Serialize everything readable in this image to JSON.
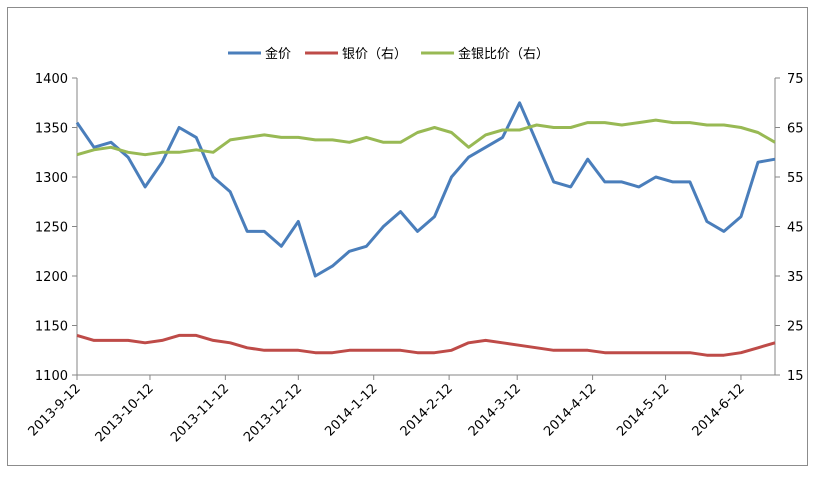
{
  "chart_data": {
    "type": "line",
    "x": [
      "2013-9-12",
      "2013-9-19",
      "2013-9-26",
      "2013-10-3",
      "2013-10-10",
      "2013-10-17",
      "2013-10-24",
      "2013-10-31",
      "2013-11-7",
      "2013-11-14",
      "2013-11-21",
      "2013-11-28",
      "2013-12-5",
      "2013-12-12",
      "2013-12-19",
      "2013-12-26",
      "2014-1-2",
      "2014-1-9",
      "2014-1-16",
      "2014-1-23",
      "2014-1-30",
      "2014-2-6",
      "2014-2-13",
      "2014-2-20",
      "2014-2-27",
      "2014-3-6",
      "2014-3-13",
      "2014-3-20",
      "2014-3-27",
      "2014-4-3",
      "2014-4-10",
      "2014-4-17",
      "2014-4-24",
      "2014-5-1",
      "2014-5-8",
      "2014-5-15",
      "2014-5-22",
      "2014-5-29",
      "2014-6-5",
      "2014-6-12",
      "2014-6-19",
      "2014-6-26"
    ],
    "series": [
      {
        "name": "金价",
        "color": "#4a7ebb",
        "values": [
          1355,
          1330,
          1335,
          1320,
          1290,
          1315,
          1350,
          1340,
          1300,
          1285,
          1245,
          1245,
          1230,
          1255,
          1200,
          1210,
          1225,
          1230,
          1250,
          1265,
          1245,
          1260,
          1300,
          1320,
          1330,
          1340,
          1375,
          1335,
          1295,
          1290,
          1318,
          1295,
          1295,
          1290,
          1300,
          1295,
          1295,
          1255,
          1245,
          1260,
          1315,
          1318
        ]
      },
      {
        "name": "银价（右）",
        "color": "#be4b48",
        "axis": "y2",
        "values": [
          23,
          22,
          22,
          22,
          21.5,
          22,
          23,
          23,
          22,
          21.5,
          20.5,
          20,
          20,
          20,
          19.5,
          19.5,
          20,
          20,
          20,
          20,
          19.5,
          19.5,
          20,
          21.5,
          22,
          21.5,
          21,
          20.5,
          20,
          20,
          20,
          19.5,
          19.5,
          19.5,
          19.5,
          19.5,
          19.5,
          19,
          19,
          19.5,
          20.5,
          21.5
        ]
      },
      {
        "name": "金银比价（右）",
        "color": "#98b954",
        "axis": "y2",
        "values": [
          59.5,
          60.5,
          61,
          60,
          59.5,
          60,
          60,
          60.5,
          60,
          62.5,
          63,
          63.5,
          63,
          63,
          62.5,
          62.5,
          62,
          63,
          62,
          62,
          64,
          65,
          64,
          61,
          63.5,
          64.5,
          64.5,
          65.5,
          65,
          65,
          66,
          66,
          65.5,
          66,
          66.5,
          66,
          66,
          65.5,
          65.5,
          65,
          64,
          62
        ]
      }
    ],
    "xlim": [
      "2013-9-12",
      "2014-6-26"
    ],
    "xticks": [
      "2013-9-12",
      "2013-10-12",
      "2013-11-12",
      "2013-12-12",
      "2014-1-12",
      "2014-2-12",
      "2014-3-12",
      "2014-4-12",
      "2014-5-12",
      "2014-6-12"
    ],
    "ylim": [
      1100,
      1400
    ],
    "yticks": [
      1100,
      1150,
      1200,
      1250,
      1300,
      1350,
      1400
    ],
    "y2lim": [
      15,
      75
    ],
    "y2ticks": [
      15,
      25,
      35,
      45,
      55,
      65,
      75
    ],
    "legend": "top"
  }
}
